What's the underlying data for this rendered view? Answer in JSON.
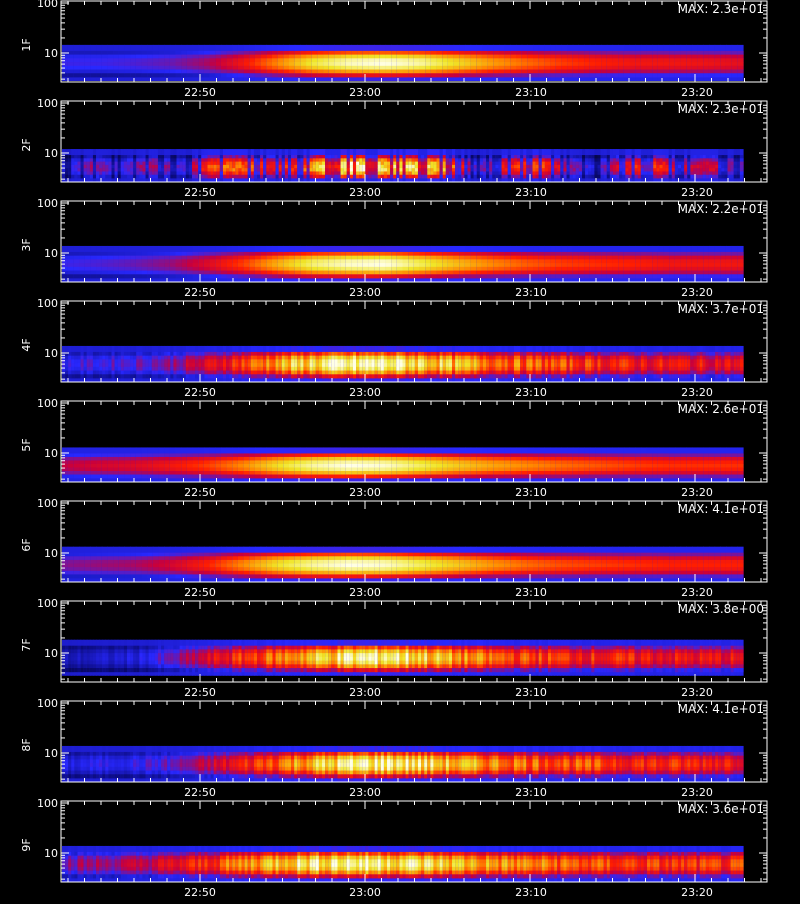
{
  "chart_data": [
    {
      "type": "heatmap",
      "ylabel": "1F",
      "max_label": "MAX: 2.3e+01",
      "yticks": [
        "100",
        "10"
      ],
      "xticks": [
        "22:50",
        "23:00",
        "23:10",
        "23:20"
      ],
      "pattern": "smooth",
      "band_center": 6.3,
      "intensity": [
        0.3,
        0.3,
        0.32,
        0.35,
        0.42,
        0.55,
        0.72,
        0.88,
        0.97,
        1.0,
        0.95,
        0.85,
        0.75,
        0.68,
        0.62,
        0.58,
        0.55,
        0.55,
        0.54,
        0.52
      ]
    },
    {
      "type": "heatmap",
      "ylabel": "2F",
      "max_label": "MAX: 2.3e+01",
      "yticks": [
        "100",
        "10"
      ],
      "xticks": [
        "22:50",
        "23:00",
        "23:10",
        "23:20"
      ],
      "pattern": "bursty",
      "band_center": 5.2,
      "intensity": [
        0.25,
        0.4,
        0.3,
        0.45,
        0.3,
        0.65,
        0.7,
        0.55,
        0.6,
        0.95,
        1.0,
        0.85,
        0.9,
        0.8,
        0.3,
        0.55,
        0.7,
        0.45,
        0.25,
        0.55,
        0.62,
        0.45,
        0.5,
        0.35
      ]
    },
    {
      "type": "heatmap",
      "ylabel": "3F",
      "max_label": "MAX: 2.2e+01",
      "yticks": [
        "100",
        "10"
      ],
      "xticks": [
        "22:50",
        "23:00",
        "23:10",
        "23:20"
      ],
      "pattern": "smooth",
      "band_center": 6.0,
      "intensity": [
        0.3,
        0.32,
        0.35,
        0.4,
        0.5,
        0.62,
        0.78,
        0.92,
        0.98,
        1.0,
        0.9,
        0.8,
        0.72,
        0.66,
        0.62,
        0.6,
        0.58,
        0.55,
        0.55,
        0.55
      ]
    },
    {
      "type": "heatmap",
      "ylabel": "4F",
      "max_label": "MAX: 3.7e+01",
      "yticks": [
        "100",
        "10"
      ],
      "xticks": [
        "22:50",
        "23:00",
        "23:10",
        "23:20"
      ],
      "pattern": "striated",
      "band_center": 6.0,
      "intensity": [
        0.3,
        0.32,
        0.35,
        0.4,
        0.5,
        0.65,
        0.8,
        0.92,
        0.98,
        1.0,
        0.92,
        0.82,
        0.75,
        0.7,
        0.65,
        0.62,
        0.58,
        0.56,
        0.55,
        0.55
      ]
    },
    {
      "type": "heatmap",
      "ylabel": "5F",
      "max_label": "MAX: 2.6e+01",
      "yticks": [
        "100",
        "10"
      ],
      "xticks": [
        "22:50",
        "23:00",
        "23:10",
        "23:20"
      ],
      "pattern": "smooth",
      "band_center": 5.6,
      "intensity": [
        0.45,
        0.48,
        0.5,
        0.55,
        0.62,
        0.72,
        0.85,
        0.95,
        1.0,
        0.98,
        0.9,
        0.82,
        0.76,
        0.72,
        0.68,
        0.65,
        0.62,
        0.6,
        0.6,
        0.6
      ]
    },
    {
      "type": "heatmap",
      "ylabel": "6F",
      "max_label": "MAX: 4.1e+01",
      "yticks": [
        "100",
        "10"
      ],
      "xticks": [
        "22:50",
        "23:00",
        "23:10",
        "23:20"
      ],
      "pattern": "smooth",
      "band_center": 5.8,
      "intensity": [
        0.38,
        0.4,
        0.42,
        0.48,
        0.58,
        0.72,
        0.86,
        0.95,
        1.0,
        0.98,
        0.9,
        0.82,
        0.74,
        0.68,
        0.64,
        0.62,
        0.6,
        0.58,
        0.58,
        0.58
      ]
    },
    {
      "type": "heatmap",
      "ylabel": "7F",
      "max_label": "MAX: 3.8e+00",
      "yticks": [
        "100",
        "10"
      ],
      "xticks": [
        "22:50",
        "23:00",
        "23:10",
        "23:20"
      ],
      "pattern": "striated",
      "band_center": 8.0,
      "intensity": [
        0.2,
        0.22,
        0.25,
        0.35,
        0.5,
        0.62,
        0.72,
        0.85,
        0.95,
        1.0,
        0.9,
        0.78,
        0.7,
        0.65,
        0.62,
        0.6,
        0.58,
        0.56,
        0.55,
        0.55
      ]
    },
    {
      "type": "heatmap",
      "ylabel": "8F",
      "max_label": "MAX: 4.1e+01",
      "yticks": [
        "100",
        "10"
      ],
      "xticks": [
        "22:50",
        "23:00",
        "23:10",
        "23:20"
      ],
      "pattern": "striated",
      "band_center": 6.0,
      "intensity": [
        0.25,
        0.28,
        0.3,
        0.35,
        0.45,
        0.58,
        0.72,
        0.85,
        0.95,
        1.0,
        0.92,
        0.82,
        0.76,
        0.72,
        0.68,
        0.65,
        0.62,
        0.6,
        0.6,
        0.6
      ]
    },
    {
      "type": "heatmap",
      "ylabel": "9F",
      "max_label": "MAX: 3.6e+01",
      "yticks": [
        "100",
        "10"
      ],
      "xticks": [
        "22:50",
        "23:00",
        "23:10",
        "23:20"
      ],
      "pattern": "striated",
      "band_center": 6.0,
      "intensity": [
        0.4,
        0.42,
        0.45,
        0.52,
        0.62,
        0.75,
        0.88,
        0.96,
        1.0,
        0.98,
        0.92,
        0.85,
        0.78,
        0.74,
        0.7,
        0.66,
        0.64,
        0.62,
        0.62,
        0.62
      ]
    }
  ]
}
